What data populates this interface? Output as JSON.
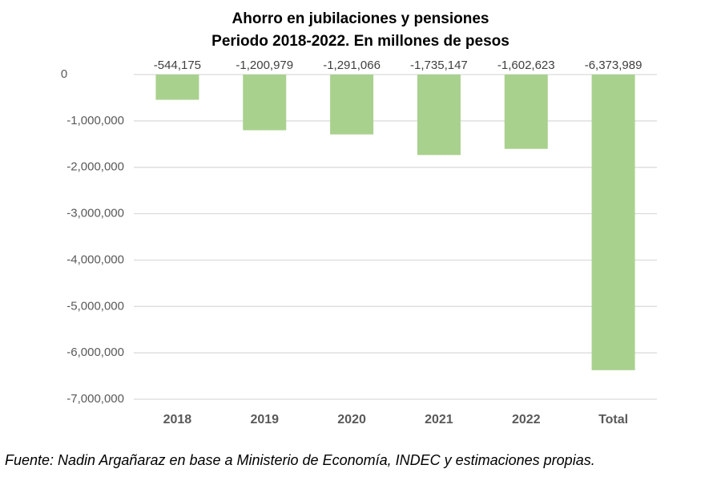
{
  "chart_data": {
    "type": "bar",
    "title": "Ahorro en jubilaciones y pensiones",
    "subtitle": "Periodo 2018-2022. En millones de pesos",
    "categories": [
      "2018",
      "2019",
      "2020",
      "2021",
      "2022",
      "Total"
    ],
    "values": [
      -544175,
      -1200979,
      -1291066,
      -1735147,
      -1602623,
      -6373989
    ],
    "value_labels": [
      "-544,175",
      "-1,200,979",
      "-1,291,066",
      "-1,735,147",
      "-1,602,623",
      "-6,373,989"
    ],
    "color": "#a9d18e",
    "ylim": [
      -7000000,
      0
    ],
    "yticks": [
      {
        "value": -7000000,
        "label": "-7,000,000"
      },
      {
        "value": -6000000,
        "label": "-6,000,000"
      },
      {
        "value": -5000000,
        "label": "-5,000,000"
      },
      {
        "value": -4000000,
        "label": "-4,000,000"
      },
      {
        "value": -3000000,
        "label": "-3,000,000"
      },
      {
        "value": -2000000,
        "label": "-2,000,000"
      },
      {
        "value": -1000000,
        "label": "-1,000,000"
      },
      0
    ],
    "grid": true,
    "source": "Fuente: Nadin Argañaraz en base a Ministerio de Economía, INDEC y estimaciones propias."
  }
}
